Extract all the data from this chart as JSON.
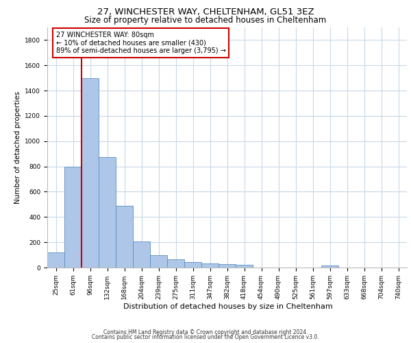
{
  "title_line1": "27, WINCHESTER WAY, CHELTENHAM, GL51 3EZ",
  "title_line2": "Size of property relative to detached houses in Cheltenham",
  "xlabel": "Distribution of detached houses by size in Cheltenham",
  "ylabel": "Number of detached properties",
  "footer_line1": "Contains HM Land Registry data © Crown copyright and database right 2024.",
  "footer_line2": "Contains public sector information licensed under the Open Government Licence v3.0.",
  "annotation_line1": "27 WINCHESTER WAY: 80sqm",
  "annotation_line2": "← 10% of detached houses are smaller (430)",
  "annotation_line3": "89% of semi-detached houses are larger (3,795) →",
  "categories": [
    "25sqm",
    "61sqm",
    "96sqm",
    "132sqm",
    "168sqm",
    "204sqm",
    "239sqm",
    "275sqm",
    "311sqm",
    "347sqm",
    "382sqm",
    "418sqm",
    "454sqm",
    "490sqm",
    "525sqm",
    "561sqm",
    "597sqm",
    "633sqm",
    "668sqm",
    "704sqm",
    "740sqm"
  ],
  "values": [
    120,
    800,
    1500,
    875,
    490,
    205,
    100,
    65,
    45,
    30,
    25,
    20,
    0,
    0,
    0,
    0,
    15,
    0,
    0,
    0,
    0
  ],
  "bar_color": "#aec6e8",
  "bar_edge_color": "#5a8fc0",
  "vline_color": "#cc0000",
  "vline_x_idx": 1,
  "background_color": "#ffffff",
  "grid_color": "#c8d8e8",
  "annotation_box_color": "#cc0000",
  "ylim": [
    0,
    1900
  ],
  "yticks": [
    0,
    200,
    400,
    600,
    800,
    1000,
    1200,
    1400,
    1600,
    1800
  ],
  "title1_fontsize": 9.5,
  "title2_fontsize": 8.5,
  "footer_fontsize": 5.5,
  "tick_fontsize": 6.5,
  "ylabel_fontsize": 7.5,
  "xlabel_fontsize": 8,
  "ann_fontsize": 7
}
